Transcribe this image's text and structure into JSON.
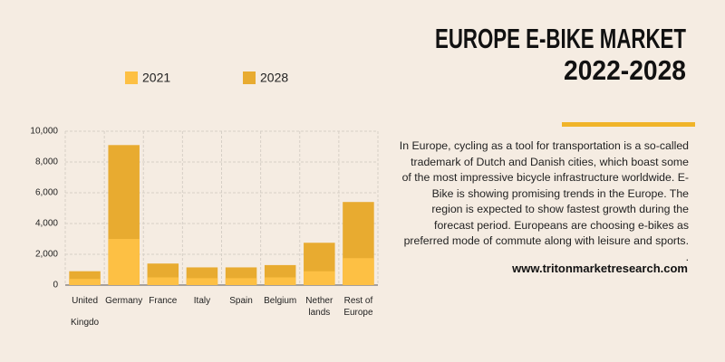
{
  "title_lines": [
    "EUROPE E-BIKE MARKET",
    "2022-2028"
  ],
  "paragraph": "In Europe, cycling as a tool for transportation is a so-called trademark of Dutch and Danish cities, which boast some of the most impressive bicycle infrastructure worldwide. E-Bike is showing promising trends in the Europe. The region is expected to show fastest growth during the forecast period. Europeans are choosing e-bikes as preferred mode of commute along with leisure and sports.\n.",
  "website": "www.tritonmarketresearch.com",
  "chart_data": {
    "type": "bar",
    "categories": [
      "United Kingdo",
      "Germany",
      "France",
      "Italy",
      "Spain",
      "Belgium",
      "Nether lands",
      "Rest of Europe"
    ],
    "series": [
      {
        "name": "2028",
        "color": "#e8ab30",
        "values": [
          900,
          9100,
          1400,
          1150,
          1150,
          1300,
          2750,
          5400
        ]
      },
      {
        "name": "2021",
        "color": "#fdc044",
        "values": [
          400,
          3000,
          500,
          450,
          450,
          500,
          900,
          1750
        ]
      }
    ],
    "ylim": [
      0,
      10000
    ],
    "yticks": [
      0,
      {
        "value": 2000,
        "label": "2,000"
      },
      {
        "value": 4000,
        "label": "4,000"
      },
      {
        "value": 6000,
        "label": "6,000"
      },
      {
        "value": 8000,
        "label": "8,000"
      },
      {
        "value": 10000,
        "label": "10,000"
      }
    ],
    "grid": true
  }
}
